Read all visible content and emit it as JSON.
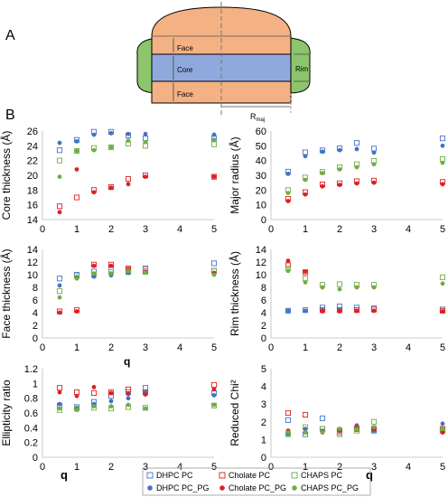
{
  "panel_a": {
    "label": "A",
    "face_top": "Face",
    "core": "Core",
    "face_bottom": "Face",
    "rim": "Rim",
    "rmaj_main": "R",
    "rmaj_sub": "maj"
  },
  "panel_b": {
    "label": "B"
  },
  "colors": {
    "face": "#f4b183",
    "core": "#8fa9dc",
    "rim": "#8cc56b",
    "dhpc": "#4472c4",
    "cholate": "#e02020",
    "chaps": "#70ad47"
  },
  "legend": {
    "entries": [
      {
        "label": "DHPC PC",
        "series": "dhpc",
        "filled": false
      },
      {
        "label": "Cholate PC",
        "series": "cholate",
        "filled": false
      },
      {
        "label": "CHAPS PC",
        "series": "chaps",
        "filled": false
      },
      {
        "label": "DHPC PC_PG",
        "series": "dhpc",
        "filled": true
      },
      {
        "label": "Cholate PC_PG",
        "series": "cholate",
        "filled": true
      },
      {
        "label": "CHAPS PC_PG",
        "series": "chaps",
        "filled": true
      }
    ]
  },
  "q_label_mid": "q",
  "q_label_left": "q",
  "q_label_right": "q",
  "chart_data": [
    {
      "type": "scatter",
      "ylabel": "Core thickness (Å)",
      "xlim": [
        0,
        5
      ],
      "ylim": [
        14,
        26
      ],
      "xticks": [
        "0",
        "1",
        "2",
        "3",
        "4",
        "5"
      ],
      "yticks": [
        "14",
        "16",
        "18",
        "20",
        "22",
        "24",
        "26"
      ],
      "x": [
        0.5,
        1,
        1.5,
        2,
        2.5,
        3,
        5
      ],
      "series": [
        {
          "name": "DHPC PC",
          "values": [
            23.4,
            24.8,
            25.9,
            25.9,
            25.4,
            25.0,
            25.0
          ]
        },
        {
          "name": "Cholate PC",
          "values": [
            15.8,
            17.0,
            18.0,
            18.4,
            19.5,
            20.0,
            19.8
          ]
        },
        {
          "name": "CHAPS PC",
          "values": [
            22.0,
            23.3,
            23.7,
            23.8,
            24.3,
            24.0,
            24.2
          ]
        },
        {
          "name": "DHPC PC_PG",
          "values": [
            24.4,
            24.6,
            25.5,
            25.7,
            25.6,
            25.6,
            25.5
          ]
        },
        {
          "name": "Cholate PC_PG",
          "values": [
            15.0,
            20.8,
            17.7,
            18.3,
            18.8,
            19.8,
            19.8
          ]
        },
        {
          "name": "CHAPS PC_PG",
          "values": [
            19.8,
            23.3,
            23.4,
            23.8,
            24.7,
            24.5,
            24.8
          ]
        }
      ]
    },
    {
      "type": "scatter",
      "ylabel": "Major radius (Å)",
      "xlim": [
        0,
        5
      ],
      "ylim": [
        0,
        60
      ],
      "xticks": [
        "0",
        "1",
        "2",
        "3",
        "4",
        "5"
      ],
      "yticks": [
        "0",
        "10",
        "20",
        "30",
        "40",
        "50",
        "60"
      ],
      "x": [
        0.5,
        1,
        1.5,
        2,
        2.5,
        3,
        5
      ],
      "series": [
        {
          "name": "DHPC PC",
          "values": [
            32.5,
            45.6,
            46.9,
            48.3,
            51.9,
            48.1,
            55.0
          ]
        },
        {
          "name": "Cholate PC",
          "values": [
            14.0,
            18.6,
            23.8,
            24.6,
            26.0,
            26.4,
            25.5
          ]
        },
        {
          "name": "CHAPS PC",
          "values": [
            20.0,
            28.5,
            32.3,
            35.5,
            37.5,
            39.8,
            41.0
          ]
        },
        {
          "name": "DHPC PC_PG",
          "values": [
            31.0,
            43.0,
            46.0,
            47.0,
            47.8,
            45.4,
            50.0
          ]
        },
        {
          "name": "Cholate PC_PG",
          "values": [
            12.5,
            17.0,
            22.5,
            23.5,
            24.5,
            25.0,
            24.0
          ]
        },
        {
          "name": "CHAPS PC_PG",
          "values": [
            18.0,
            27.0,
            31.5,
            34.0,
            35.5,
            37.5,
            38.5
          ]
        }
      ]
    },
    {
      "type": "scatter",
      "ylabel": "Face thickness (Å)",
      "xlim": [
        0,
        5
      ],
      "ylim": [
        0,
        14
      ],
      "xticks": [
        "0",
        "1",
        "2",
        "3",
        "4",
        "5"
      ],
      "yticks": [
        "0",
        "2",
        "4",
        "6",
        "8",
        "10",
        "12",
        "14"
      ],
      "x": [
        0.5,
        1,
        1.5,
        2,
        2.5,
        3,
        5
      ],
      "series": [
        {
          "name": "DHPC PC",
          "values": [
            9.4,
            10.0,
            10.5,
            10.8,
            10.8,
            11.0,
            11.8
          ]
        },
        {
          "name": "Cholate PC",
          "values": [
            4.2,
            4.4,
            11.6,
            11.6,
            11.0,
            10.5,
            10.6
          ]
        },
        {
          "name": "CHAPS PC",
          "values": [
            7.4,
            9.8,
            10.0,
            10.4,
            10.4,
            10.8,
            10.6
          ]
        },
        {
          "name": "DHPC PC_PG",
          "values": [
            8.3,
            9.6,
            9.7,
            9.9,
            10.3,
            10.4,
            10.3
          ]
        },
        {
          "name": "Cholate PC_PG",
          "values": [
            4.0,
            4.2,
            11.4,
            11.4,
            10.8,
            10.4,
            10.2
          ]
        },
        {
          "name": "CHAPS PC_PG",
          "values": [
            6.4,
            9.4,
            10.2,
            10.2,
            10.6,
            10.3,
            10.0
          ]
        }
      ]
    },
    {
      "type": "scatter",
      "ylabel": "Rim thickness (Å)",
      "xlim": [
        0,
        5
      ],
      "ylim": [
        0,
        14
      ],
      "xticks": [
        "0",
        "1",
        "2",
        "3",
        "4",
        "5"
      ],
      "yticks": [
        "0",
        "2",
        "4",
        "6",
        "8",
        "10",
        "12",
        "14"
      ],
      "x": [
        0.5,
        1,
        1.5,
        2,
        2.5,
        3,
        5
      ],
      "series": [
        {
          "name": "DHPC PC",
          "values": [
            4.3,
            4.4,
            4.8,
            5.0,
            4.8,
            4.7,
            4.5
          ]
        },
        {
          "name": "Cholate PC",
          "values": [
            11.5,
            10.4,
            4.4,
            4.4,
            4.4,
            4.5,
            4.3
          ]
        },
        {
          "name": "CHAPS PC",
          "values": [
            11.0,
            9.4,
            8.4,
            8.5,
            8.4,
            8.4,
            9.6
          ]
        },
        {
          "name": "DHPC PC_PG",
          "values": [
            4.3,
            4.3,
            4.4,
            4.4,
            4.3,
            4.3,
            4.2
          ]
        },
        {
          "name": "Cholate PC_PG",
          "values": [
            12.2,
            10.5,
            4.2,
            4.2,
            4.3,
            4.3,
            4.2
          ]
        },
        {
          "name": "CHAPS PC_PG",
          "values": [
            10.6,
            8.8,
            8.0,
            7.7,
            8.0,
            8.0,
            8.6
          ]
        }
      ]
    },
    {
      "type": "scatter",
      "ylabel": "Ellipticity ratio",
      "xlim": [
        0,
        5
      ],
      "ylim": [
        0,
        1.2
      ],
      "xticks": [
        "0",
        "1",
        "2",
        "3",
        "4",
        "5"
      ],
      "yticks": [
        "0",
        "0.2",
        "0.4",
        "0.6",
        "0.8",
        "1",
        "1.2"
      ],
      "x": [
        0.5,
        1,
        1.5,
        2,
        2.5,
        3,
        5
      ],
      "series": [
        {
          "name": "DHPC PC",
          "values": [
            0.7,
            0.68,
            0.75,
            0.83,
            0.88,
            0.94,
            0.87
          ]
        },
        {
          "name": "Cholate PC",
          "values": [
            0.94,
            0.88,
            0.87,
            0.88,
            0.92,
            0.88,
            0.98
          ]
        },
        {
          "name": "CHAPS PC",
          "values": [
            0.64,
            0.66,
            0.67,
            0.66,
            0.68,
            0.67,
            0.7
          ]
        },
        {
          "name": "DHPC PC_PG",
          "values": [
            0.72,
            0.66,
            0.72,
            0.76,
            0.8,
            0.88,
            0.84
          ]
        },
        {
          "name": "Cholate PC_PG",
          "values": [
            0.88,
            0.83,
            0.95,
            0.87,
            0.86,
            0.85,
            0.92
          ]
        },
        {
          "name": "CHAPS PC_PG",
          "values": [
            0.66,
            0.64,
            0.69,
            0.69,
            0.71,
            0.66,
            0.71
          ]
        }
      ]
    },
    {
      "type": "scatter",
      "ylabel": "Reduced Chi²",
      "xlim": [
        0,
        5
      ],
      "ylim": [
        0,
        5
      ],
      "xticks": [
        "0",
        "1",
        "2",
        "3",
        "4",
        "5"
      ],
      "yticks": [
        "0",
        "1",
        "2",
        "3",
        "4",
        "5"
      ],
      "x": [
        0.5,
        1,
        1.5,
        2,
        2.5,
        3,
        5
      ],
      "series": [
        {
          "name": "DHPC PC",
          "values": [
            2.1,
            1.3,
            2.2,
            1.4,
            1.6,
            1.5,
            1.5
          ]
        },
        {
          "name": "Cholate PC",
          "values": [
            2.5,
            2.4,
            1.6,
            1.5,
            1.6,
            1.6,
            1.6
          ]
        },
        {
          "name": "CHAPS PC",
          "values": [
            1.3,
            1.7,
            1.6,
            1.3,
            1.5,
            2.0,
            1.5
          ]
        },
        {
          "name": "DHPC PC_PG",
          "values": [
            1.3,
            1.6,
            1.5,
            1.6,
            1.8,
            1.5,
            1.9
          ]
        },
        {
          "name": "Cholate PC_PG",
          "values": [
            1.5,
            1.4,
            1.4,
            1.5,
            1.7,
            1.6,
            1.4
          ]
        },
        {
          "name": "CHAPS PC_PG",
          "values": [
            1.4,
            1.4,
            1.4,
            1.6,
            1.6,
            1.7,
            1.6
          ]
        }
      ]
    }
  ]
}
